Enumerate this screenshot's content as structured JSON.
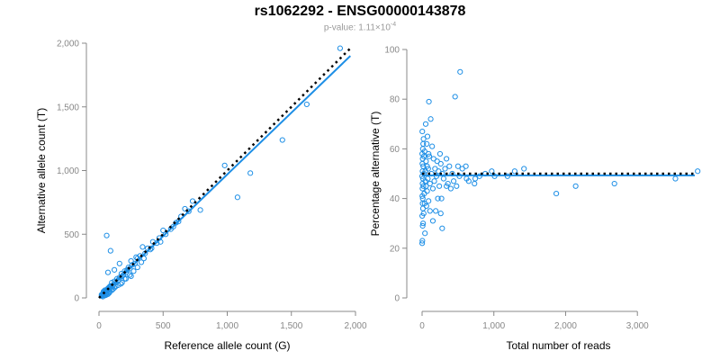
{
  "title": "rs1062292 - ENSG00000143878",
  "subtitle": {
    "prefix": "p-value: 1.11×10",
    "exponent": "-4"
  },
  "colors": {
    "points": "#1E8FE6",
    "fit": "#1E8FE6",
    "reference": "#000000",
    "axis": "#888888"
  },
  "chart_data": [
    {
      "type": "scatter",
      "title": "",
      "xlabel": "Reference allele count (G)",
      "ylabel": "Alternative allele count (T)",
      "xlim": [
        0,
        2000
      ],
      "ylim": [
        0,
        2000
      ],
      "xticks": [
        0,
        500,
        1000,
        1500,
        2000
      ],
      "xtick_labels": [
        "0",
        "500",
        "1,000",
        "1,500",
        "2,000"
      ],
      "yticks": [
        0,
        500,
        1000,
        1500,
        2000
      ],
      "ytick_labels": [
        "0",
        "500",
        "1,000",
        "1,500",
        "2,000"
      ],
      "grid": false,
      "points": [
        [
          1880,
          1960
        ],
        [
          1620,
          1520
        ],
        [
          1430,
          1240
        ],
        [
          1180,
          980
        ],
        [
          1080,
          790
        ],
        [
          980,
          1040
        ],
        [
          790,
          690
        ],
        [
          730,
          760
        ],
        [
          670,
          700
        ],
        [
          640,
          640
        ],
        [
          600,
          590
        ],
        [
          580,
          560
        ],
        [
          520,
          500
        ],
        [
          500,
          530
        ],
        [
          470,
          470
        ],
        [
          450,
          430
        ],
        [
          420,
          440
        ],
        [
          400,
          380
        ],
        [
          380,
          390
        ],
        [
          360,
          350
        ],
        [
          340,
          400
        ],
        [
          320,
          330
        ],
        [
          300,
          310
        ],
        [
          290,
          320
        ],
        [
          280,
          270
        ],
        [
          260,
          260
        ],
        [
          250,
          290
        ],
        [
          240,
          230
        ],
        [
          230,
          240
        ],
        [
          220,
          220
        ],
        [
          210,
          200
        ],
        [
          200,
          210
        ],
        [
          190,
          180
        ],
        [
          180,
          170
        ],
        [
          175,
          190
        ],
        [
          160,
          160
        ],
        [
          150,
          140
        ],
        [
          140,
          150
        ],
        [
          130,
          120
        ],
        [
          120,
          130
        ],
        [
          110,
          100
        ],
        [
          100,
          120
        ],
        [
          95,
          90
        ],
        [
          90,
          95
        ],
        [
          85,
          80
        ],
        [
          80,
          85
        ],
        [
          75,
          70
        ],
        [
          70,
          75
        ],
        [
          65,
          60
        ],
        [
          60,
          65
        ],
        [
          55,
          50
        ],
        [
          50,
          55
        ],
        [
          45,
          40
        ],
        [
          40,
          45
        ],
        [
          35,
          30
        ],
        [
          30,
          35
        ],
        [
          25,
          20
        ],
        [
          20,
          25
        ],
        [
          60,
          490
        ],
        [
          90,
          370
        ],
        [
          70,
          200
        ],
        [
          120,
          220
        ],
        [
          200,
          150
        ],
        [
          250,
          170
        ],
        [
          300,
          240
        ],
        [
          160,
          270
        ],
        [
          150,
          100
        ],
        [
          180,
          120
        ],
        [
          100,
          60
        ],
        [
          120,
          80
        ],
        [
          80,
          40
        ],
        [
          70,
          30
        ],
        [
          60,
          25
        ],
        [
          55,
          35
        ],
        [
          40,
          20
        ],
        [
          30,
          10
        ],
        [
          20,
          15
        ],
        [
          50,
          20
        ],
        [
          45,
          60
        ],
        [
          35,
          50
        ],
        [
          65,
          40
        ],
        [
          85,
          50
        ],
        [
          110,
          70
        ],
        [
          130,
          90
        ],
        [
          170,
          110
        ],
        [
          210,
          150
        ],
        [
          240,
          180
        ],
        [
          270,
          210
        ],
        [
          330,
          280
        ],
        [
          350,
          310
        ],
        [
          410,
          390
        ],
        [
          480,
          440
        ],
        [
          560,
          540
        ],
        [
          620,
          600
        ],
        [
          700,
          680
        ]
      ],
      "fit_line": {
        "name": "",
        "x": [
          0,
          1960
        ],
        "y": [
          0,
          1900
        ]
      },
      "reference_line": {
        "name": "",
        "x": [
          0,
          1960
        ],
        "y": [
          0,
          1960
        ],
        "style": "dotted"
      }
    },
    {
      "type": "scatter",
      "title": "",
      "xlabel": "Total number of reads",
      "ylabel": "Percentage alternative (T)",
      "xlim": [
        0,
        3800
      ],
      "ylim": [
        0,
        100
      ],
      "xticks": [
        0,
        1000,
        2000,
        3000
      ],
      "xtick_labels": [
        "0",
        "1,000",
        "2,000",
        "3,000"
      ],
      "yticks": [
        0,
        20,
        40,
        60,
        80,
        100
      ],
      "ytick_labels": [
        "0",
        "20",
        "40",
        "60",
        "80",
        "100"
      ],
      "grid": false,
      "points": [
        [
          3840,
          51
        ],
        [
          3530,
          48
        ],
        [
          2680,
          46
        ],
        [
          2140,
          45
        ],
        [
          1870,
          42
        ],
        [
          1420,
          52
        ],
        [
          1290,
          51
        ],
        [
          1190,
          49
        ],
        [
          1010,
          49
        ],
        [
          970,
          51
        ],
        [
          880,
          50
        ],
        [
          800,
          49
        ],
        [
          740,
          48
        ],
        [
          650,
          47
        ],
        [
          620,
          48
        ],
        [
          560,
          52
        ],
        [
          530,
          91
        ],
        [
          520,
          49
        ],
        [
          500,
          53
        ],
        [
          460,
          81
        ],
        [
          440,
          47
        ],
        [
          420,
          50
        ],
        [
          400,
          44
        ],
        [
          380,
          53
        ],
        [
          360,
          46
        ],
        [
          340,
          45
        ],
        [
          320,
          52
        ],
        [
          300,
          48
        ],
        [
          280,
          50
        ],
        [
          270,
          40
        ],
        [
          260,
          54
        ],
        [
          250,
          58
        ],
        [
          240,
          45
        ],
        [
          230,
          51
        ],
        [
          220,
          40
        ],
        [
          210,
          55
        ],
        [
          200,
          49
        ],
        [
          190,
          35
        ],
        [
          180,
          52
        ],
        [
          170,
          47
        ],
        [
          160,
          56
        ],
        [
          150,
          44
        ],
        [
          140,
          61
        ],
        [
          130,
          50
        ],
        [
          120,
          72
        ],
        [
          110,
          46
        ],
        [
          100,
          57
        ],
        [
          95,
          79
        ],
        [
          90,
          39
        ],
        [
          85,
          52
        ],
        [
          80,
          48
        ],
        [
          75,
          65
        ],
        [
          70,
          43
        ],
        [
          65,
          62
        ],
        [
          60,
          37
        ],
        [
          55,
          55
        ],
        [
          50,
          70
        ],
        [
          45,
          47
        ],
        [
          40,
          26
        ],
        [
          35,
          59
        ],
        [
          30,
          42
        ],
        [
          25,
          50
        ],
        [
          22,
          34
        ],
        [
          20,
          64
        ],
        [
          18,
          45
        ],
        [
          16,
          53
        ],
        [
          14,
          30
        ],
        [
          12,
          48
        ],
        [
          10,
          60
        ],
        [
          9,
          40
        ],
        [
          8,
          56
        ],
        [
          7,
          38
        ],
        [
          6,
          51
        ],
        [
          5,
          44
        ],
        [
          4,
          23
        ],
        [
          3,
          67
        ],
        [
          2,
          33
        ],
        [
          1,
          49
        ],
        [
          280,
          28
        ],
        [
          480,
          45
        ],
        [
          610,
          53
        ],
        [
          730,
          46
        ],
        [
          340,
          56
        ],
        [
          260,
          34
        ],
        [
          150,
          31
        ],
        [
          110,
          35
        ],
        [
          90,
          58
        ],
        [
          70,
          53
        ],
        [
          55,
          45
        ],
        [
          45,
          51
        ],
        [
          35,
          38
        ],
        [
          25,
          57
        ],
        [
          15,
          62
        ],
        [
          12,
          36
        ],
        [
          8,
          29
        ],
        [
          6,
          46
        ],
        [
          4,
          54
        ],
        [
          3,
          41
        ],
        [
          2,
          58
        ],
        [
          1,
          22
        ]
      ],
      "fit_line": {
        "name": "",
        "x": [
          0,
          3800
        ],
        "y": [
          49.3,
          49.3
        ]
      },
      "reference_line": {
        "name": "",
        "x": [
          0,
          3800
        ],
        "y": [
          50,
          50
        ],
        "style": "dotted"
      }
    }
  ]
}
